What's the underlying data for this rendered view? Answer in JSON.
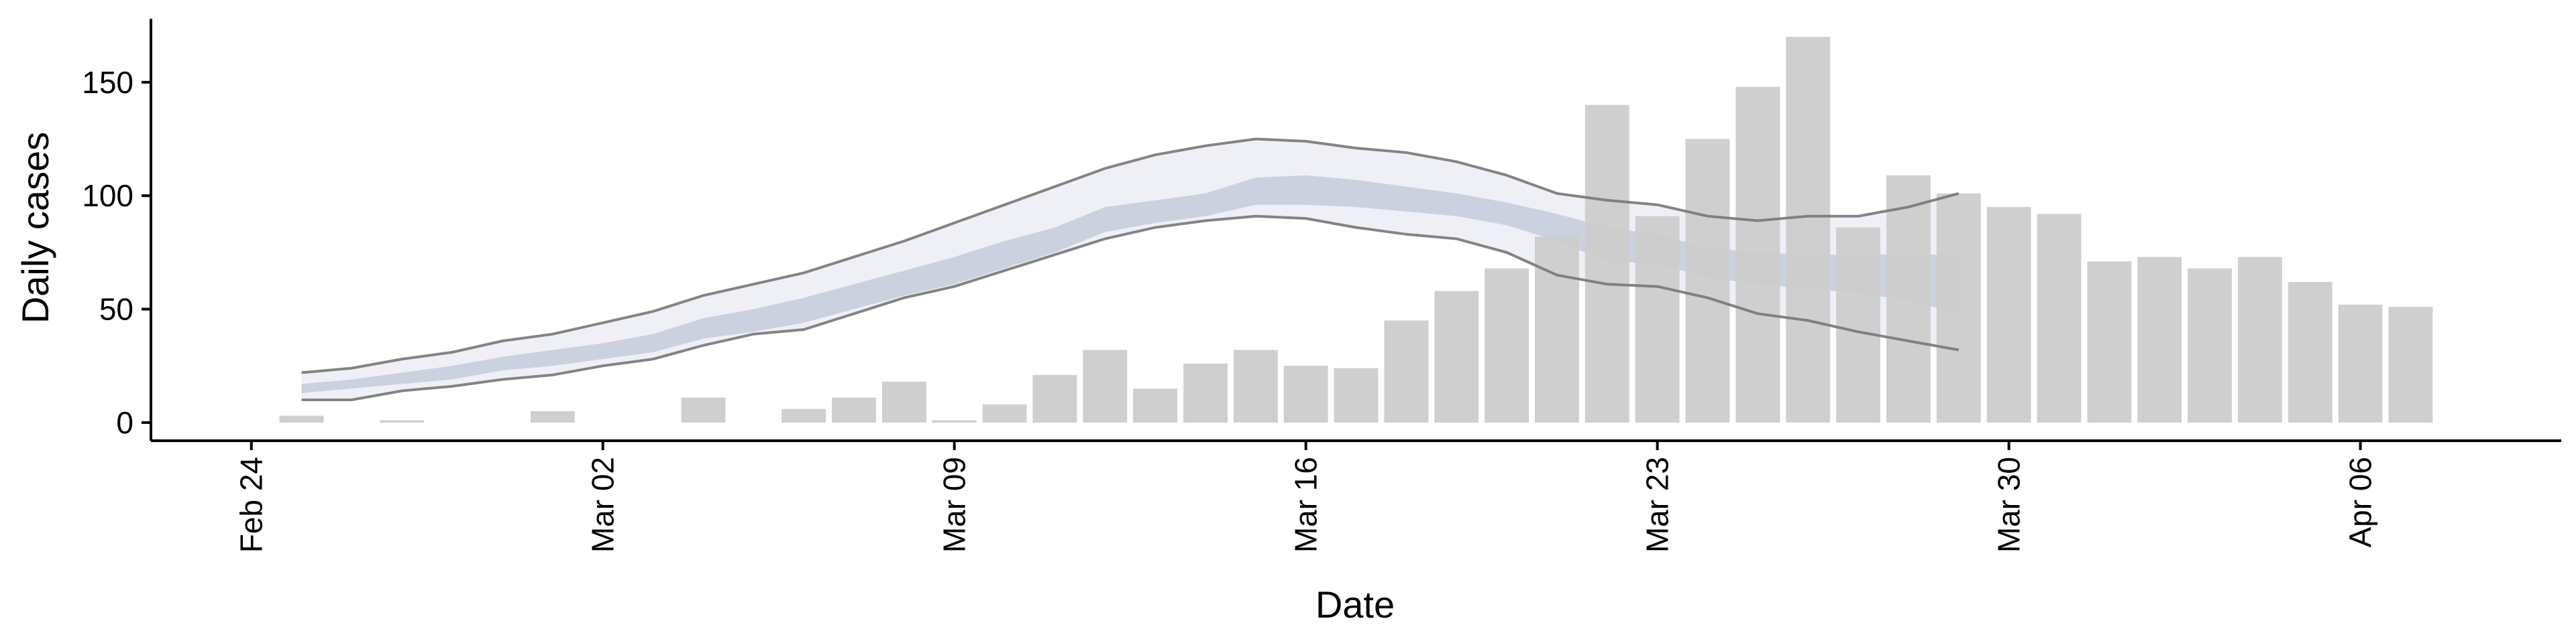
{
  "chart_data": {
    "type": "bar",
    "xlabel": "Date",
    "ylabel": "Daily cases",
    "ylim": [
      -8,
      178
    ],
    "y_ticks": [
      0,
      50,
      100,
      150
    ],
    "x_ticks": [
      {
        "date": "2020-02-24",
        "label": "Feb 24"
      },
      {
        "date": "2020-03-02",
        "label": "Mar 02"
      },
      {
        "date": "2020-03-09",
        "label": "Mar 09"
      },
      {
        "date": "2020-03-16",
        "label": "Mar 16"
      },
      {
        "date": "2020-03-23",
        "label": "Mar 23"
      },
      {
        "date": "2020-03-30",
        "label": "Mar 30"
      },
      {
        "date": "2020-04-06",
        "label": "Apr 06"
      }
    ],
    "x_range": [
      "2020-02-22",
      "2020-04-10"
    ],
    "grid": false,
    "colors": {
      "bars": "#cccccc",
      "outer_band": "#ecedf4",
      "inner_band": "#c3c9db",
      "bound_line": "#777777"
    },
    "bars": [
      {
        "date": "2020-02-25",
        "value": 3
      },
      {
        "date": "2020-02-27",
        "value": 1
      },
      {
        "date": "2020-03-01",
        "value": 5
      },
      {
        "date": "2020-03-04",
        "value": 11
      },
      {
        "date": "2020-03-06",
        "value": 6
      },
      {
        "date": "2020-03-07",
        "value": 11
      },
      {
        "date": "2020-03-08",
        "value": 18
      },
      {
        "date": "2020-03-09",
        "value": 1
      },
      {
        "date": "2020-03-10",
        "value": 8
      },
      {
        "date": "2020-03-11",
        "value": 21
      },
      {
        "date": "2020-03-12",
        "value": 32
      },
      {
        "date": "2020-03-13",
        "value": 15
      },
      {
        "date": "2020-03-14",
        "value": 26
      },
      {
        "date": "2020-03-15",
        "value": 32
      },
      {
        "date": "2020-03-16",
        "value": 25
      },
      {
        "date": "2020-03-17",
        "value": 24
      },
      {
        "date": "2020-03-18",
        "value": 45
      },
      {
        "date": "2020-03-19",
        "value": 58
      },
      {
        "date": "2020-03-20",
        "value": 68
      },
      {
        "date": "2020-03-21",
        "value": 82
      },
      {
        "date": "2020-03-22",
        "value": 140
      },
      {
        "date": "2020-03-23",
        "value": 91
      },
      {
        "date": "2020-03-24",
        "value": 125
      },
      {
        "date": "2020-03-25",
        "value": 148
      },
      {
        "date": "2020-03-26",
        "value": 170
      },
      {
        "date": "2020-03-27",
        "value": 86
      },
      {
        "date": "2020-03-28",
        "value": 109
      },
      {
        "date": "2020-03-29",
        "value": 101
      },
      {
        "date": "2020-03-30",
        "value": 95
      },
      {
        "date": "2020-03-31",
        "value": 92
      },
      {
        "date": "2020-04-01",
        "value": 71
      },
      {
        "date": "2020-04-02",
        "value": 73
      },
      {
        "date": "2020-04-03",
        "value": 68
      },
      {
        "date": "2020-04-04",
        "value": 73
      },
      {
        "date": "2020-04-05",
        "value": 62
      },
      {
        "date": "2020-04-06",
        "value": 52
      },
      {
        "date": "2020-04-07",
        "value": 51
      }
    ],
    "bands": {
      "dates": [
        "2020-02-25",
        "2020-02-26",
        "2020-02-27",
        "2020-02-28",
        "2020-02-29",
        "2020-03-01",
        "2020-03-02",
        "2020-03-03",
        "2020-03-04",
        "2020-03-05",
        "2020-03-06",
        "2020-03-07",
        "2020-03-08",
        "2020-03-09",
        "2020-03-10",
        "2020-03-11",
        "2020-03-12",
        "2020-03-13",
        "2020-03-14",
        "2020-03-15",
        "2020-03-16",
        "2020-03-17",
        "2020-03-18",
        "2020-03-19",
        "2020-03-20",
        "2020-03-21",
        "2020-03-22",
        "2020-03-23",
        "2020-03-24",
        "2020-03-25",
        "2020-03-26",
        "2020-03-27",
        "2020-03-28",
        "2020-03-29"
      ],
      "outer_upper": [
        22,
        24,
        28,
        31,
        36,
        39,
        44,
        49,
        56,
        61,
        66,
        73,
        80,
        88,
        96,
        104,
        112,
        118,
        122,
        125,
        124,
        121,
        119,
        115,
        109,
        101,
        98,
        96,
        91,
        89,
        91,
        91,
        95,
        101
      ],
      "outer_lower": [
        10,
        10,
        14,
        16,
        19,
        21,
        25,
        28,
        34,
        39,
        41,
        48,
        55,
        60,
        67,
        74,
        81,
        86,
        89,
        91,
        90,
        86,
        83,
        81,
        75,
        65,
        61,
        60,
        55,
        48,
        45,
        40,
        36,
        32
      ],
      "inner_upper": [
        17,
        19,
        22,
        25,
        29,
        32,
        35,
        39,
        46,
        50,
        55,
        61,
        67,
        73,
        80,
        86,
        95,
        98,
        101,
        108,
        109,
        107,
        104,
        101,
        97,
        92,
        86,
        83,
        77,
        75,
        74,
        74,
        74,
        74
      ],
      "inner_lower": [
        13,
        15,
        17,
        19,
        23,
        25,
        28,
        31,
        37,
        40,
        44,
        50,
        56,
        61,
        68,
        75,
        84,
        88,
        91,
        96,
        96,
        95,
        93,
        91,
        87,
        80,
        71,
        70,
        64,
        61,
        59,
        57,
        54,
        48
      ]
    }
  }
}
